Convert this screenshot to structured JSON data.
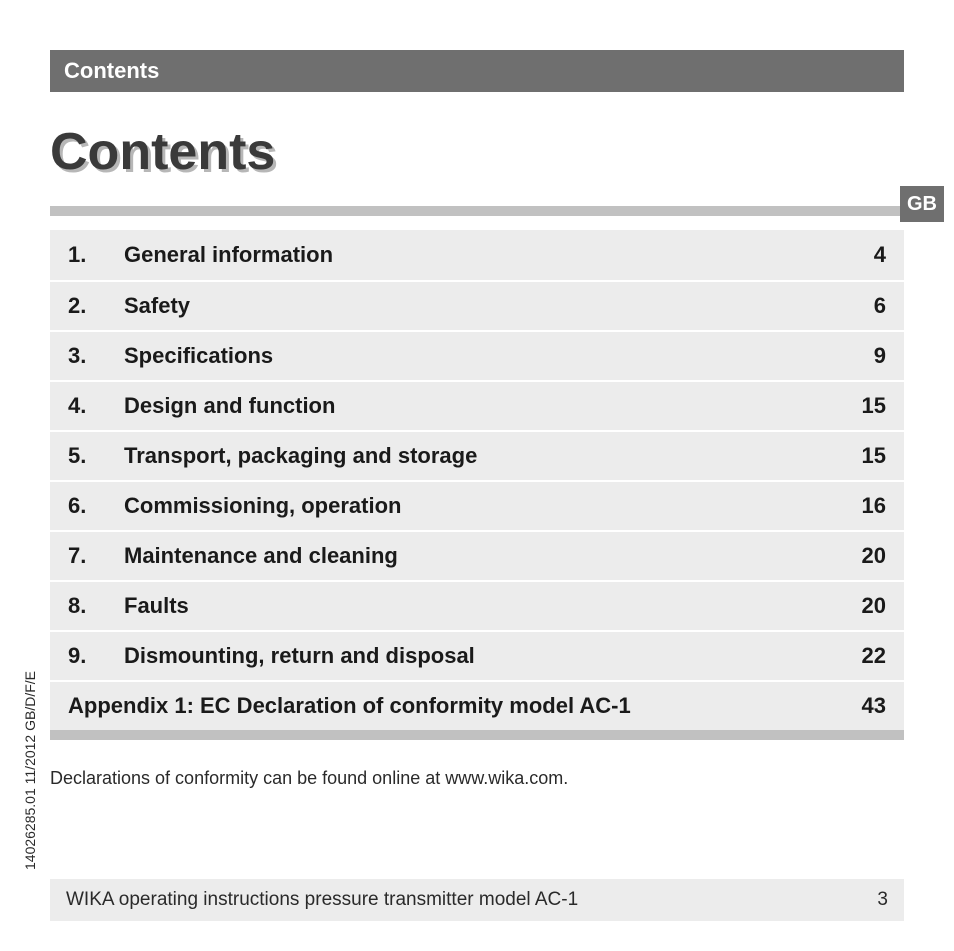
{
  "header": {
    "label": "Contents"
  },
  "title": "Contents",
  "language_tab": "GB",
  "side_code": "14026285.01 11/2012 GB/D/F/E",
  "toc": {
    "items": [
      {
        "num": "1.",
        "title": "General information",
        "page": "4"
      },
      {
        "num": "2.",
        "title": "Safety",
        "page": "6"
      },
      {
        "num": "3.",
        "title": "Specifications",
        "page": "9"
      },
      {
        "num": "4.",
        "title": "Design and function",
        "page": "15"
      },
      {
        "num": "5.",
        "title": "Transport, packaging and storage",
        "page": "15"
      },
      {
        "num": "6.",
        "title": "Commissioning, operation",
        "page": "16"
      },
      {
        "num": "7.",
        "title": "Maintenance and cleaning",
        "page": "20"
      },
      {
        "num": "8.",
        "title": "Faults",
        "page": "20"
      },
      {
        "num": "9.",
        "title": "Dismounting, return and disposal",
        "page": "22"
      }
    ],
    "appendix": {
      "title": "Appendix 1: EC Declaration of conformity model AC-1",
      "page": "43"
    }
  },
  "note": "Declarations of conformity can be found online at www.wika.com.",
  "footer": {
    "text": "WIKA operating instructions pressure transmitter model AC-1",
    "page_number": "3"
  },
  "colors": {
    "header_bg": "#6f6f6f",
    "header_fg": "#ffffff",
    "title_fg": "#3a3a3a",
    "title_shadow": "#b7b7b7",
    "rule": "#c1c1c1",
    "row_bg": "#ececec",
    "text": "#1a1a1a",
    "page_bg": "#ffffff"
  }
}
